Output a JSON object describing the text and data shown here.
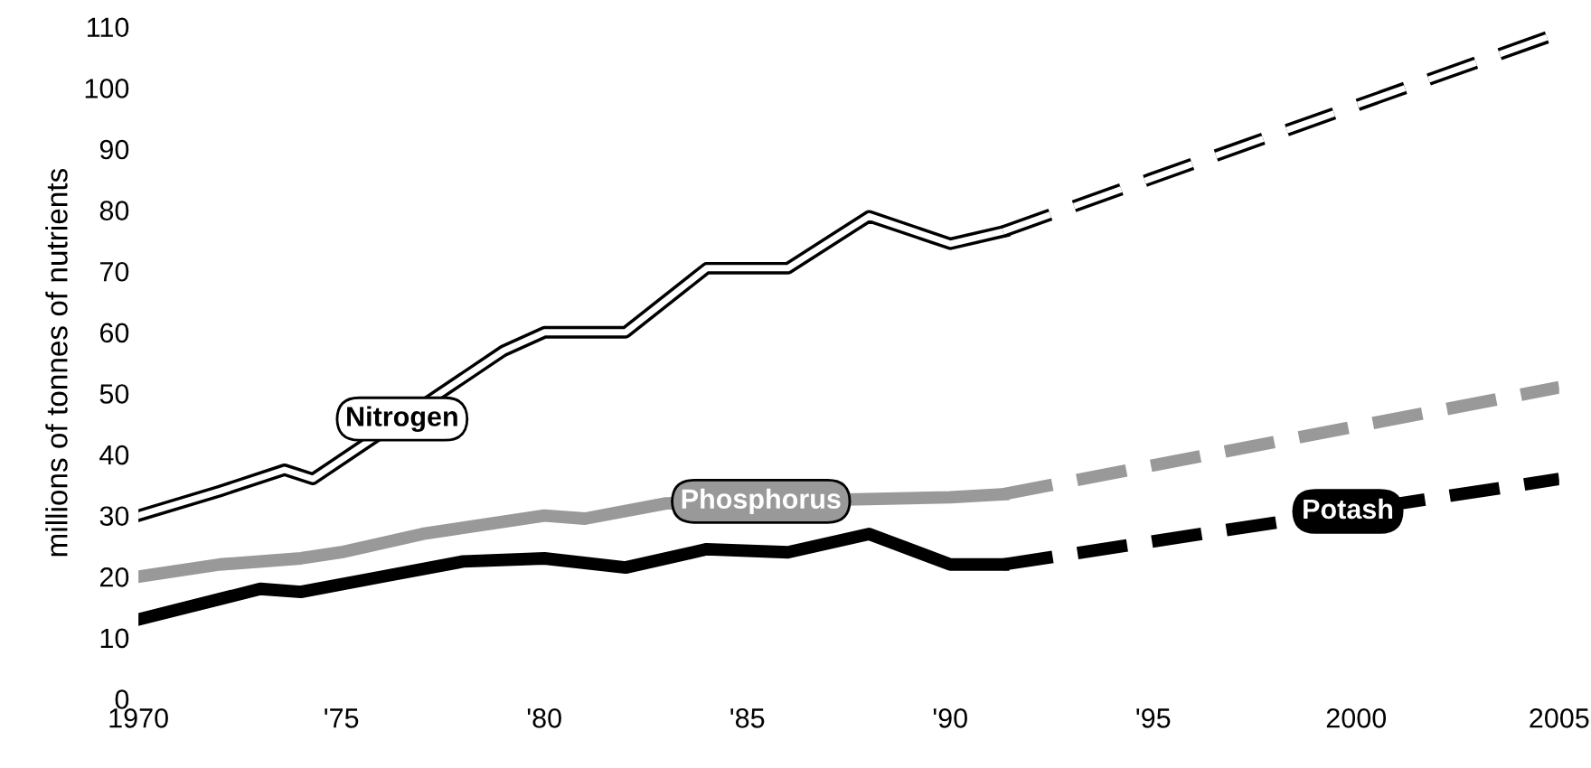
{
  "chart_data": {
    "type": "line",
    "ylabel": "millions of tonnes of nutrients",
    "xlim": [
      1970,
      2005
    ],
    "ylim": [
      0,
      110
    ],
    "xticks": [
      {
        "value": 1970,
        "label": "1970"
      },
      {
        "value": 1975,
        "label": "'75"
      },
      {
        "value": 1980,
        "label": "'80"
      },
      {
        "value": 1985,
        "label": "'85"
      },
      {
        "value": 1990,
        "label": "'90"
      },
      {
        "value": 1995,
        "label": "'95"
      },
      {
        "value": 2000,
        "label": "2000"
      },
      {
        "value": 2005,
        "label": "2005"
      }
    ],
    "yticks": [
      0,
      10,
      20,
      30,
      40,
      50,
      60,
      70,
      80,
      90,
      100,
      110
    ],
    "grid": false,
    "legend": false,
    "marker": "none",
    "series": [
      {
        "name": "Nitrogen",
        "color": "#000000",
        "line_style": "solid",
        "x": [
          1970,
          1972,
          1973.6,
          1974.3,
          1979,
          1980,
          1982,
          1984,
          1986,
          1988,
          1990,
          1991.3
        ],
        "values": [
          30,
          34,
          37.5,
          36,
          57,
          60,
          60,
          70.5,
          70.5,
          79,
          74.5,
          76.5
        ]
      },
      {
        "color": "#000000",
        "line_style": "dashed",
        "x": [
          1991.3,
          2005
        ],
        "values": [
          76.5,
          109
        ]
      },
      {
        "name": "Phosphorus",
        "color": "#999999",
        "line_style": "solid",
        "x": [
          1970,
          1972,
          1974,
          1975,
          1977,
          1979,
          1980,
          1981,
          1983,
          1990,
          1991.3
        ],
        "values": [
          20,
          22,
          23,
          24,
          27,
          29,
          30,
          29.5,
          32,
          33,
          33.5
        ]
      },
      {
        "color": "#999999",
        "line_style": "dashed",
        "x": [
          1991.3,
          2005
        ],
        "values": [
          33.5,
          51
        ]
      },
      {
        "name": "Potash",
        "color": "#000000",
        "line_style": "solid",
        "x": [
          1970,
          1973,
          1974,
          1976,
          1978,
          1980,
          1982,
          1984,
          1986,
          1988,
          1990,
          1991.3
        ],
        "values": [
          13,
          18,
          17.5,
          20,
          22.5,
          23,
          21.5,
          24.5,
          24,
          27,
          22,
          22
        ]
      },
      {
        "color": "#000000",
        "line_style": "dashed",
        "x": [
          1991.3,
          2005
        ],
        "values": [
          22,
          36
        ]
      }
    ]
  }
}
